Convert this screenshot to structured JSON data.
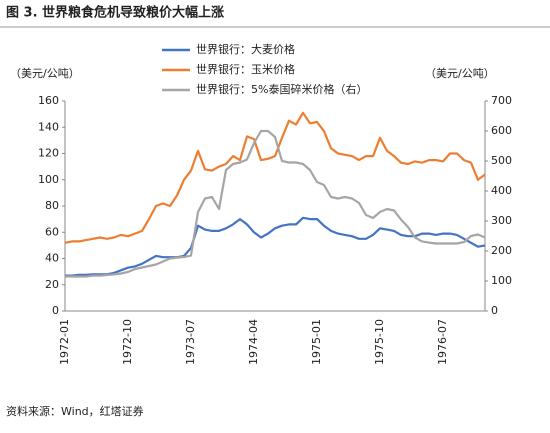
{
  "chart_data": {
    "type": "line",
    "title": "图 3. 世界粮食危机导致粮价大幅上涨",
    "source": "资料来源：Wind，红塔证券",
    "ylabel": "（美元/公吨）",
    "y2label": "（美元/公吨）",
    "categories": [
      "1972-01",
      null,
      null,
      null,
      null,
      null,
      null,
      null,
      null,
      "1972-10",
      null,
      null,
      null,
      null,
      null,
      null,
      null,
      null,
      "1973-07",
      null,
      null,
      null,
      null,
      null,
      null,
      null,
      null,
      "1974-04",
      null,
      null,
      null,
      null,
      null,
      null,
      null,
      null,
      "1975-01",
      null,
      null,
      null,
      null,
      null,
      null,
      null,
      null,
      "1975-10",
      null,
      null,
      null,
      null,
      null,
      null,
      null,
      null,
      "1976-07",
      null,
      null,
      null,
      null,
      null,
      null
    ],
    "ylim": [
      0,
      160
    ],
    "yticks": [
      0,
      20,
      40,
      60,
      80,
      100,
      120,
      140,
      160
    ],
    "y2lim": [
      0,
      700
    ],
    "y2ticks": [
      0,
      100,
      200,
      300,
      400,
      500,
      600,
      700
    ],
    "legend": "top",
    "series": [
      {
        "name": "世界银行：大麦价格",
        "color": "#4472c4",
        "values": [
          27,
          27,
          27.5,
          27.5,
          28,
          28,
          28,
          29,
          31,
          33,
          34,
          36,
          39,
          42,
          41,
          41,
          41,
          42,
          48,
          65,
          62,
          61,
          61,
          63,
          66,
          70,
          66,
          60,
          56,
          59,
          63,
          65,
          66,
          66,
          71,
          70,
          70,
          65,
          61,
          59,
          58,
          57,
          55,
          55,
          58,
          63,
          62,
          61,
          58,
          57,
          57,
          59,
          59,
          58,
          59,
          59,
          58,
          55,
          52,
          49,
          50
        ]
      },
      {
        "name": "世界银行：玉米价格",
        "color": "#ed7d31",
        "values": [
          52,
          53,
          53,
          54,
          55,
          56,
          55,
          56,
          58,
          57,
          59,
          61,
          70,
          80,
          82,
          80,
          88,
          100,
          107,
          122,
          108,
          107,
          110,
          112,
          118,
          115,
          133,
          131,
          115,
          116,
          118,
          132,
          145,
          142,
          151,
          143,
          144,
          137,
          124,
          120,
          119,
          118,
          115,
          118,
          118,
          132,
          122,
          118,
          113,
          112,
          114,
          113,
          115,
          115,
          114,
          120,
          120,
          115,
          113,
          100,
          104
        ]
      },
      {
        "name": "世界银行：5%泰国碎米价格（右）",
        "color": "#a5a5a5",
        "axis": "y2",
        "values": [
          115,
          115,
          115,
          115,
          118,
          118,
          120,
          122,
          125,
          130,
          140,
          145,
          150,
          155,
          165,
          175,
          178,
          180,
          185,
          330,
          375,
          380,
          340,
          470,
          490,
          495,
          505,
          560,
          600,
          600,
          580,
          500,
          495,
          495,
          490,
          470,
          430,
          420,
          380,
          375,
          380,
          375,
          360,
          320,
          310,
          330,
          340,
          335,
          305,
          280,
          245,
          232,
          228,
          225,
          225,
          225,
          225,
          230,
          250,
          255,
          245
        ]
      }
    ]
  }
}
